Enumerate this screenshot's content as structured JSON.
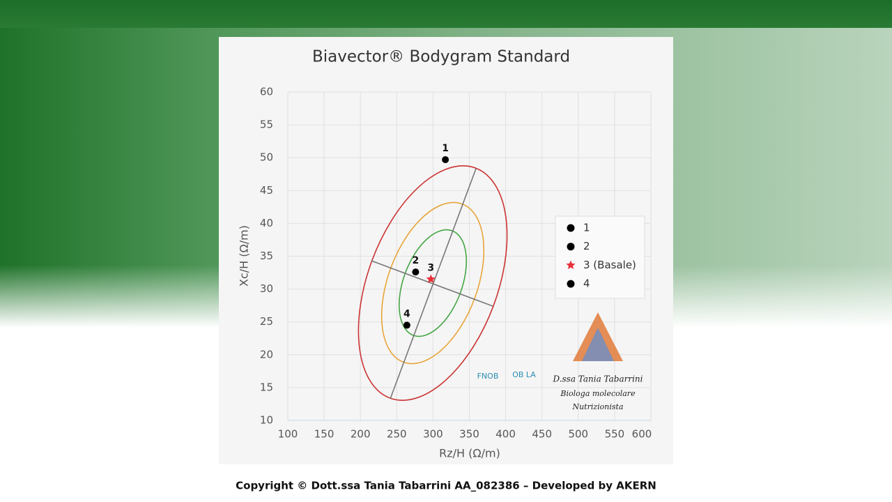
{
  "chart_data": {
    "type": "scatter",
    "title": "Biavector® Bodygram Standard",
    "x_label": "Rz/H (Ω/m)",
    "y_label": "Xc/H (Ω/m)",
    "xlim": [
      100,
      600
    ],
    "xticks": [
      100,
      150,
      200,
      250,
      300,
      350,
      400,
      450,
      500,
      550,
      600
    ],
    "ylim": [
      10,
      60
    ],
    "yticks": [
      10,
      15,
      20,
      25,
      30,
      35,
      40,
      45,
      50,
      55,
      60
    ],
    "grid": true,
    "legend": "right",
    "series": [
      {
        "name": "1",
        "label": "1",
        "marker": "circle",
        "color": "#000000",
        "x": [
          317
        ],
        "y": [
          49.7
        ]
      },
      {
        "name": "2",
        "label": "2",
        "marker": "circle",
        "color": "#000000",
        "x": [
          276
        ],
        "y": [
          32.6
        ]
      },
      {
        "name": "3 (Basale)",
        "label": "3",
        "marker": "star",
        "color": "#e8303a",
        "x": [
          297
        ],
        "y": [
          31.5
        ]
      },
      {
        "name": "4",
        "label": "4",
        "marker": "circle",
        "color": "#000000",
        "x": [
          264
        ],
        "y": [
          24.5
        ]
      }
    ]
  },
  "logos": {
    "fnob": "FNOB",
    "obla": "OB LA",
    "signature": "D.ssa Tania Tabarrini",
    "role1": "Biologa molecolare",
    "role2": "Nutrizionista"
  },
  "footer": "Copyright © Dott.ssa Tania Tabarrini AA_082386 – Developed by AKERN"
}
